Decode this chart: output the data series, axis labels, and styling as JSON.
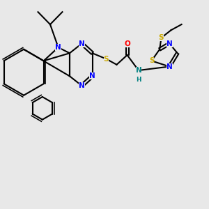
{
  "bg_color": "#e8e8e8",
  "figsize": [
    3.0,
    3.0
  ],
  "dpi": 100,
  "atom_colors": {
    "C": "#000000",
    "N": "#0000ff",
    "S": "#ccaa00",
    "O": "#ff0000",
    "H": "#008080"
  },
  "bond_color": "#000000",
  "bond_width": 1.5,
  "font_size": 7.5
}
